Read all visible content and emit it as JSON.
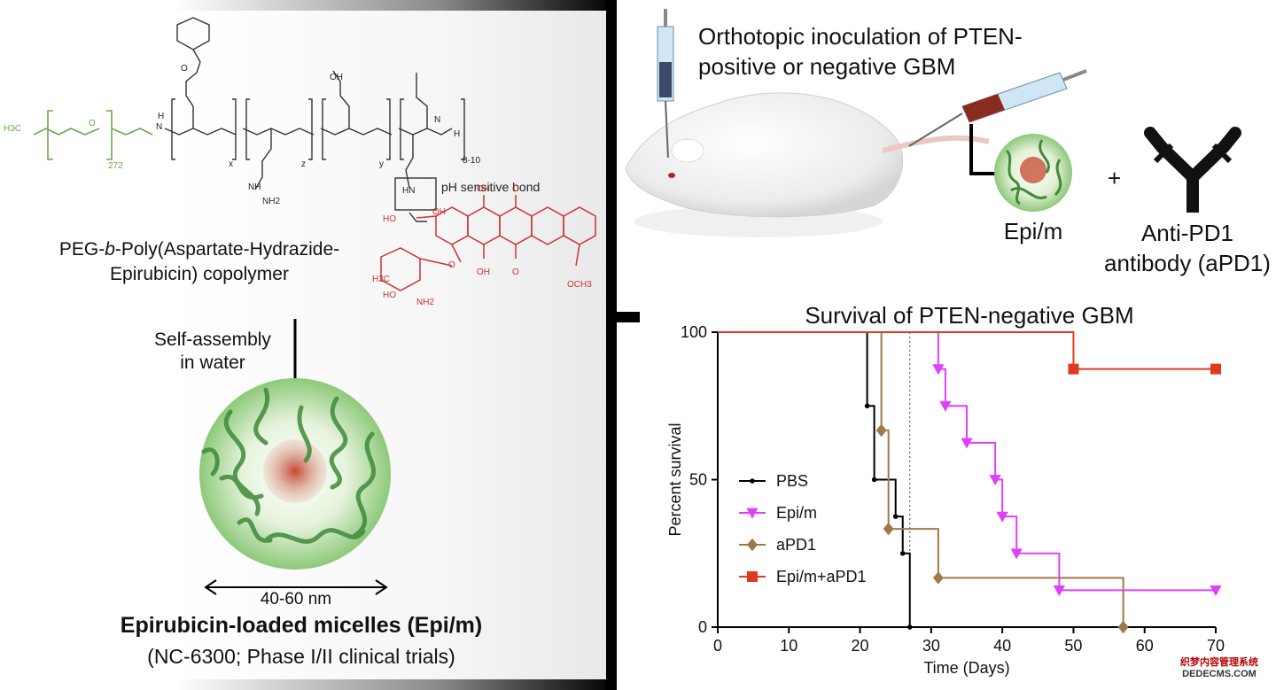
{
  "left": {
    "polymer_label": "PEG-b-Poly(Aspartate-Hydrazide-Epirubicin) copolymer",
    "polymer_label_line1_a": "PEG-",
    "polymer_label_line1_b": "b",
    "polymer_label_line1_c": "-Poly(Aspartate-Hydrazide-",
    "polymer_label_line2": "Epirubicin) copolymer",
    "ph_label": "pH sensitive bond",
    "selfassembly_line1": "Self-assembly",
    "selfassembly_line2": "in water",
    "size_label": "40-60 nm",
    "micelle_title": "Epirubicin-loaded micelles (Epi/m)",
    "micelle_subtitle": "(NC-6300; Phase I/II clinical trials)",
    "chem": {
      "h3c": "H3C",
      "o": "O",
      "n272": "272",
      "h": "H",
      "n": "N",
      "x": "x",
      "z": "z",
      "y": "y",
      "r810": "8-10",
      "oh": "OH",
      "nh": "NH",
      "nh2": "NH2",
      "hn": "HN",
      "och3": "OCH3",
      "ho": "HO"
    }
  },
  "right_top": {
    "inoculation_line1": "Orthotopic inoculation of PTEN-",
    "inoculation_line2": "positive or negative GBM",
    "plus": "+",
    "epim_label": "Epi/m",
    "antibody_line1": "Anti-PD1",
    "antibody_line2": "antibody (aPD1)"
  },
  "watermark": {
    "line1": "织梦内容管理系统",
    "line2": "DEDECMS.COM"
  },
  "chart_data": {
    "type": "line",
    "step": true,
    "title": "Survival of PTEN-negative GBM",
    "xlabel": "Time (Days)",
    "ylabel": "Percent survival",
    "xlim": [
      0,
      70
    ],
    "ylim": [
      0,
      100
    ],
    "xticks": [
      0,
      10,
      20,
      30,
      40,
      50,
      60,
      70
    ],
    "yticks": [
      0,
      50,
      100
    ],
    "reference_line_x": 27,
    "legend_position": "left",
    "series": [
      {
        "name": "PBS",
        "color": "#000000",
        "marker": "circle",
        "x": [
          0,
          21,
          22,
          25,
          26,
          27
        ],
        "y": [
          100,
          75,
          50,
          37.5,
          25,
          0
        ]
      },
      {
        "name": "Epi/m",
        "color": "#e040fb",
        "marker": "triangle-down",
        "x": [
          0,
          31,
          32,
          35,
          39,
          40,
          42,
          48,
          70
        ],
        "y": [
          100,
          87.5,
          75,
          62.5,
          50,
          37.5,
          25,
          12.5,
          12.5
        ]
      },
      {
        "name": "aPD1",
        "color": "#a0794a",
        "marker": "diamond",
        "x": [
          0,
          23,
          24,
          31,
          57
        ],
        "y": [
          100,
          66.7,
          33.3,
          16.7,
          0
        ]
      },
      {
        "name": "Epi/m+aPD1",
        "color": "#e03a1e",
        "marker": "square",
        "x": [
          0,
          50,
          70
        ],
        "y": [
          100,
          87.5,
          87.5
        ]
      }
    ]
  }
}
